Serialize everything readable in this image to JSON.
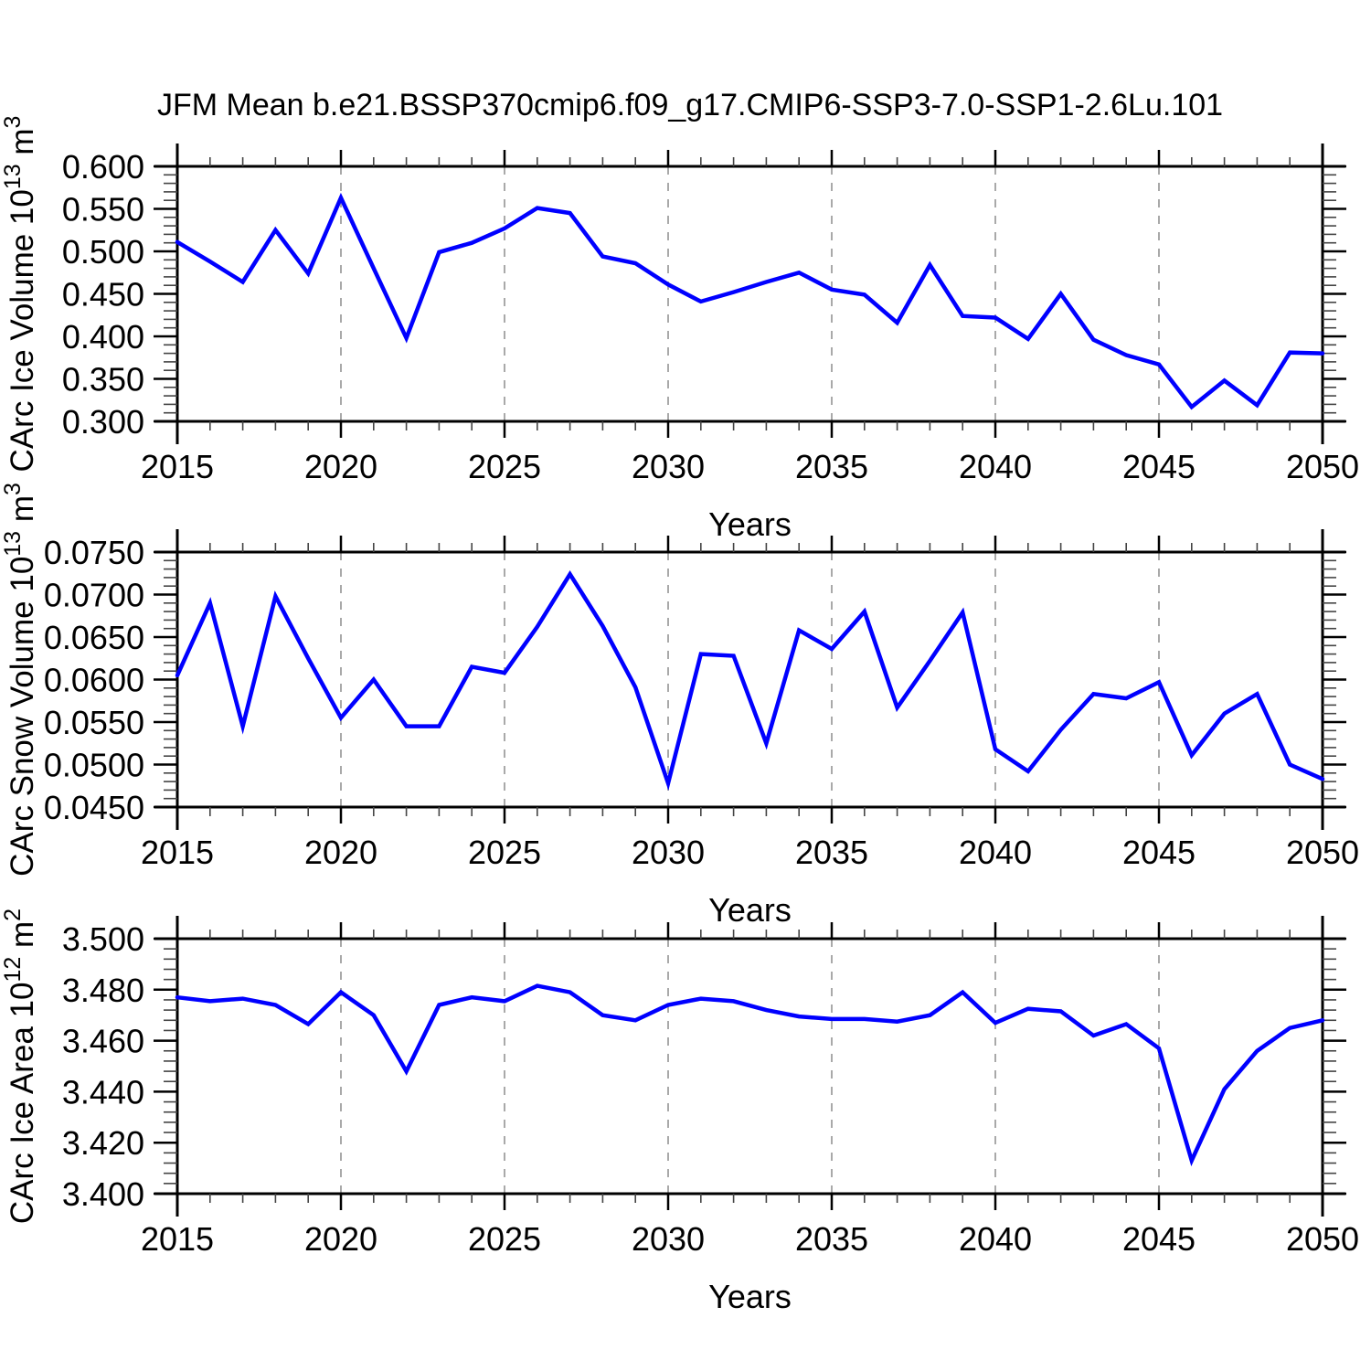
{
  "title": "JFM Mean b.e21.BSSP370cmip6.f09_g17.CMIP6-SSP3-7.0-SSP1-2.6Lu.101",
  "xlabel": "Years",
  "style": {
    "line_color": "#0000ff",
    "grid_color": "#a9a9a9",
    "axis_color": "#000000",
    "minor_tick_color": "#444444",
    "background": "#ffffff"
  },
  "chart_data": [
    {
      "type": "line",
      "name": "ice-volume",
      "ylabel": "CArc Ice Volume 10^13 m^3",
      "ylabel_segments": [
        {
          "t": "CArc Ice Volume 10"
        },
        {
          "t": "13",
          "sup": true
        },
        {
          "t": " m"
        },
        {
          "t": "3",
          "sup": true
        }
      ],
      "xlabel": "Years",
      "xlim": [
        2015,
        2050
      ],
      "ylim": [
        0.3,
        0.6
      ],
      "ytick_values": [
        0.6,
        0.55,
        0.5,
        0.45,
        0.4,
        0.35,
        0.3
      ],
      "ytick_labels": [
        "0.600",
        "0.550",
        "0.500",
        "0.450",
        "0.400",
        "0.350",
        "0.300"
      ],
      "y_minor_step": 0.01,
      "xtick_values": [
        2015,
        2020,
        2025,
        2030,
        2035,
        2040,
        2045,
        2050
      ],
      "xtick_labels": [
        "2015",
        "2020",
        "2025",
        "2030",
        "2035",
        "2040",
        "2045",
        "2050"
      ],
      "x_minor_step": 1,
      "vgrid": [
        2020,
        2025,
        2030,
        2035,
        2040,
        2045
      ],
      "grid": "vertical-dashed",
      "legend": "none",
      "x": [
        2015,
        2016,
        2017,
        2018,
        2019,
        2020,
        2021,
        2022,
        2023,
        2024,
        2025,
        2026,
        2027,
        2028,
        2029,
        2030,
        2031,
        2032,
        2033,
        2034,
        2035,
        2036,
        2037,
        2038,
        2039,
        2040,
        2041,
        2042,
        2043,
        2044,
        2045,
        2046,
        2047,
        2048,
        2049,
        2050
      ],
      "values": [
        0.511,
        0.488,
        0.464,
        0.525,
        0.474,
        0.563,
        0.48,
        0.398,
        0.499,
        0.51,
        0.527,
        0.551,
        0.545,
        0.494,
        0.486,
        0.461,
        0.441,
        0.452,
        0.464,
        0.475,
        0.455,
        0.449,
        0.416,
        0.484,
        0.424,
        0.422,
        0.397,
        0.45,
        0.396,
        0.378,
        0.367,
        0.317,
        0.348,
        0.319,
        0.381,
        0.38
      ]
    },
    {
      "type": "line",
      "name": "snow-volume",
      "ylabel": "CArc Snow Volume 10^13 m^3",
      "ylabel_segments": [
        {
          "t": "CArc Snow Volume 10"
        },
        {
          "t": "13",
          "sup": true
        },
        {
          "t": " m"
        },
        {
          "t": "3",
          "sup": true
        }
      ],
      "xlabel": "Years",
      "xlim": [
        2015,
        2050
      ],
      "ylim": [
        0.045,
        0.075
      ],
      "ytick_values": [
        0.075,
        0.07,
        0.065,
        0.06,
        0.055,
        0.05,
        0.045
      ],
      "ytick_labels": [
        "0.0750",
        "0.0700",
        "0.0650",
        "0.0600",
        "0.0550",
        "0.0500",
        "0.0450"
      ],
      "y_minor_step": 0.001,
      "xtick_values": [
        2015,
        2020,
        2025,
        2030,
        2035,
        2040,
        2045,
        2050
      ],
      "xtick_labels": [
        "2015",
        "2020",
        "2025",
        "2030",
        "2035",
        "2040",
        "2045",
        "2050"
      ],
      "x_minor_step": 1,
      "vgrid": [
        2020,
        2025,
        2030,
        2035,
        2040,
        2045
      ],
      "grid": "vertical-dashed",
      "legend": "none",
      "x": [
        2015,
        2016,
        2017,
        2018,
        2019,
        2020,
        2021,
        2022,
        2023,
        2024,
        2025,
        2026,
        2027,
        2028,
        2029,
        2030,
        2031,
        2032,
        2033,
        2034,
        2035,
        2036,
        2037,
        2038,
        2039,
        2040,
        2041,
        2042,
        2043,
        2044,
        2045,
        2046,
        2047,
        2048,
        2049,
        2050
      ],
      "values": [
        0.0605,
        0.069,
        0.0545,
        0.0698,
        0.0625,
        0.0555,
        0.06,
        0.0545,
        0.0545,
        0.0615,
        0.0608,
        0.0662,
        0.0724,
        0.0663,
        0.0591,
        0.0478,
        0.063,
        0.0628,
        0.0525,
        0.0658,
        0.0636,
        0.068,
        0.0567,
        0.0622,
        0.0679,
        0.0518,
        0.0492,
        0.0541,
        0.0583,
        0.0578,
        0.0597,
        0.0511,
        0.056,
        0.0583,
        0.05,
        0.0483
      ]
    },
    {
      "type": "line",
      "name": "ice-area",
      "ylabel": "CArc Ice Area 10^12 m^2",
      "ylabel_segments": [
        {
          "t": "CArc Ice Area 10"
        },
        {
          "t": "12",
          "sup": true
        },
        {
          "t": " m"
        },
        {
          "t": "2",
          "sup": true
        }
      ],
      "xlabel": "Years",
      "xlim": [
        2015,
        2050
      ],
      "ylim": [
        3.4,
        3.5
      ],
      "ytick_values": [
        3.5,
        3.48,
        3.46,
        3.44,
        3.42,
        3.4
      ],
      "ytick_labels": [
        "3.500",
        "3.480",
        "3.460",
        "3.440",
        "3.420",
        "3.400"
      ],
      "y_minor_step": 0.004,
      "xtick_values": [
        2015,
        2020,
        2025,
        2030,
        2035,
        2040,
        2045,
        2050
      ],
      "xtick_labels": [
        "2015",
        "2020",
        "2025",
        "2030",
        "2035",
        "2040",
        "2045",
        "2050"
      ],
      "x_minor_step": 1,
      "vgrid": [
        2020,
        2025,
        2030,
        2035,
        2040,
        2045
      ],
      "grid": "vertical-dashed",
      "legend": "none",
      "x": [
        2015,
        2016,
        2017,
        2018,
        2019,
        2020,
        2021,
        2022,
        2023,
        2024,
        2025,
        2026,
        2027,
        2028,
        2029,
        2030,
        2031,
        2032,
        2033,
        2034,
        2035,
        2036,
        2037,
        2038,
        2039,
        2040,
        2041,
        2042,
        2043,
        2044,
        2045,
        2046,
        2047,
        2048,
        2049,
        2050
      ],
      "values": [
        3.477,
        3.4755,
        3.4765,
        3.474,
        3.4665,
        3.479,
        3.47,
        3.448,
        3.474,
        3.477,
        3.4755,
        3.4815,
        3.479,
        3.47,
        3.468,
        3.474,
        3.4765,
        3.4755,
        3.472,
        3.4695,
        3.4685,
        3.4685,
        3.4675,
        3.47,
        3.479,
        3.467,
        3.4725,
        3.4715,
        3.462,
        3.4665,
        3.457,
        3.413,
        3.441,
        3.456,
        3.465,
        3.468
      ]
    }
  ]
}
